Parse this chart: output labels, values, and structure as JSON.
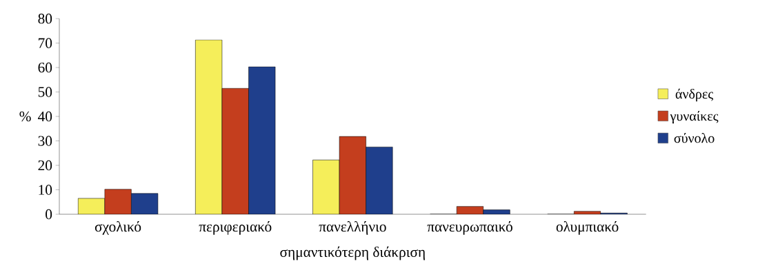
{
  "chart_data": {
    "type": "bar",
    "xlabel": "σημαντικότερη διάκριση",
    "ylabel": "%",
    "categories": [
      "σχολικό",
      "περιφεριακό",
      "πανελλήνιο",
      "πανευρωπαικό",
      "ολυμπιακό"
    ],
    "series": [
      {
        "name": "άνδρες",
        "color": "#f5ee5a",
        "values": [
          6.5,
          71.3,
          22.2,
          0,
          0
        ]
      },
      {
        "name": "γυναίκες",
        "color": "#c43e1e",
        "values": [
          10.2,
          51.5,
          31.8,
          3.2,
          1.2
        ]
      },
      {
        "name": "σύνολο",
        "color": "#1f3f8c",
        "values": [
          8.5,
          60.3,
          27.5,
          1.8,
          0.5
        ]
      }
    ],
    "ylim": [
      0,
      80
    ],
    "yticks": [
      0,
      10,
      20,
      30,
      40,
      50,
      60,
      70,
      80
    ],
    "grid": false,
    "legend": "right"
  }
}
